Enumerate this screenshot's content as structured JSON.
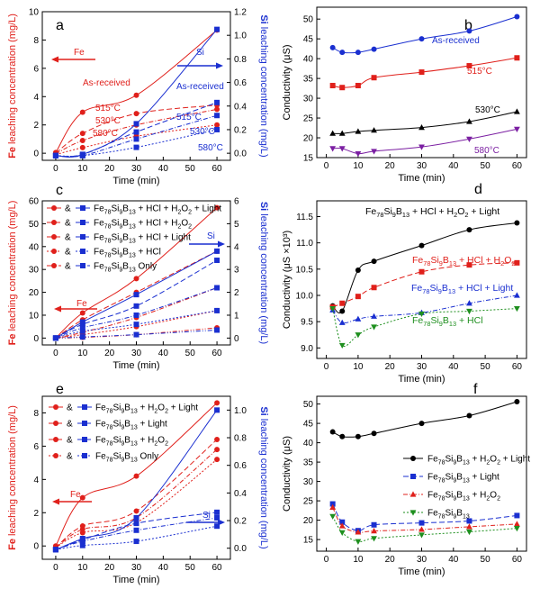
{
  "chart_data": [
    {
      "panel": "a",
      "type": "line",
      "xlabel": "Time (min)",
      "ylabel_left_bold": "Fe",
      "ylabel_left_rest": " leaching concentration (mg/L)",
      "ylabel_right_bold": "Si",
      "ylabel_right_rest": " leaching concentration (mg/L)",
      "xlim": [
        -5,
        65
      ],
      "ylim_left": [
        -0.5,
        10
      ],
      "ylim_right": [
        -0.06,
        1.2
      ],
      "xticks": [
        "0",
        "10",
        "20",
        "30",
        "40",
        "50",
        "60"
      ],
      "yticks_left": [
        "0",
        "2",
        "4",
        "6",
        "8",
        "10"
      ],
      "yticks_right": [
        "0.0",
        "0.2",
        "0.4",
        "0.6",
        "0.8",
        "1.0",
        "1.2"
      ],
      "annotations": [
        {
          "text": "Fe",
          "color": "#e0201b"
        },
        {
          "text": "Si",
          "color": "#1a2fd0"
        },
        {
          "text": "As-received",
          "color": "#e0201b"
        },
        {
          "text": "515°C",
          "color": "#e0201b"
        },
        {
          "text": "530°C",
          "color": "#e0201b"
        },
        {
          "text": "580°C",
          "color": "#e0201b"
        },
        {
          "text": "515°C",
          "color": "#1a2fd0"
        },
        {
          "text": "As-received",
          "color": "#1a2fd0"
        },
        {
          "text": "530°C",
          "color": "#1a2fd0"
        },
        {
          "text": "580°C",
          "color": "#1a2fd0"
        }
      ],
      "series": [
        {
          "name": "As-received",
          "axis": "left",
          "marker": "circle",
          "x": [
            0,
            10,
            30,
            60
          ],
          "y": [
            0.05,
            2.9,
            4.1,
            8.7
          ]
        },
        {
          "name": "515°C",
          "axis": "left",
          "marker": "circle",
          "x": [
            0,
            10,
            30,
            60
          ],
          "y": [
            0.0,
            1.4,
            2.8,
            3.4
          ]
        },
        {
          "name": "530°C",
          "axis": "left",
          "marker": "circle",
          "x": [
            0,
            10,
            30,
            60
          ],
          "y": [
            -0.05,
            0.9,
            2.0,
            3.1
          ]
        },
        {
          "name": "580°C",
          "axis": "left",
          "marker": "circle",
          "x": [
            0,
            10,
            30,
            60
          ],
          "y": [
            -0.1,
            0.4,
            1.2,
            2.0
          ]
        },
        {
          "name": "As-received",
          "axis": "right",
          "marker": "square",
          "x": [
            0,
            10,
            30,
            60
          ],
          "y": [
            -0.02,
            -0.01,
            0.25,
            1.05
          ]
        },
        {
          "name": "515°C",
          "axis": "right",
          "marker": "square",
          "x": [
            0,
            10,
            30,
            60
          ],
          "y": [
            -0.02,
            -0.01,
            0.18,
            0.43
          ]
        },
        {
          "name": "530°C",
          "axis": "right",
          "marker": "square",
          "x": [
            0,
            10,
            30,
            60
          ],
          "y": [
            -0.02,
            -0.02,
            0.12,
            0.32
          ]
        },
        {
          "name": "580°C",
          "axis": "right",
          "marker": "square",
          "x": [
            0,
            10,
            30,
            60
          ],
          "y": [
            -0.02,
            -0.02,
            0.05,
            0.2
          ]
        }
      ]
    },
    {
      "panel": "b",
      "type": "line",
      "xlabel": "Time (min)",
      "ylabel": "Conductivity (μS)",
      "xlim": [
        -3,
        63
      ],
      "ylim": [
        15,
        53
      ],
      "xticks": [
        "0",
        "10",
        "20",
        "30",
        "40",
        "50",
        "60"
      ],
      "yticks": [
        "15",
        "20",
        "25",
        "30",
        "35",
        "40",
        "45",
        "50"
      ],
      "series": [
        {
          "name": "As-received",
          "color": "#1a2fd0",
          "marker": "circle",
          "x": [
            2,
            5,
            10,
            15,
            30,
            45,
            60
          ],
          "y": [
            42.8,
            41.6,
            41.6,
            42.4,
            45.0,
            47.0,
            50.6
          ]
        },
        {
          "name": "515°C",
          "color": "#e0201b",
          "marker": "square",
          "x": [
            2,
            5,
            10,
            15,
            30,
            45,
            60
          ],
          "y": [
            33.2,
            32.7,
            33.2,
            35.2,
            36.6,
            38.2,
            40.2
          ]
        },
        {
          "name": "530°C",
          "color": "#000000",
          "marker": "triangle",
          "x": [
            2,
            5,
            10,
            15,
            30,
            45,
            60
          ],
          "y": [
            21.1,
            21.1,
            21.6,
            21.9,
            22.6,
            24.1,
            26.6
          ]
        },
        {
          "name": "580°C",
          "color": "#7b1fa2",
          "marker": "triangle-down",
          "x": [
            2,
            5,
            10,
            15,
            30,
            45,
            60
          ],
          "y": [
            17.3,
            17.3,
            16.0,
            16.6,
            17.7,
            19.7,
            22.2
          ]
        }
      ]
    },
    {
      "panel": "c",
      "type": "line",
      "xlabel": "Time (min)",
      "ylabel_left_bold": "Fe",
      "ylabel_left_rest": " leaching concentration (mg/L)",
      "ylabel_right_bold": "Si",
      "ylabel_right_rest": " leaching concentration (mg/L)",
      "xlim": [
        -5,
        65
      ],
      "ylim_left": [
        -3,
        60
      ],
      "ylim_right": [
        -0.3,
        6
      ],
      "xticks": [
        "0",
        "10",
        "20",
        "30",
        "40",
        "50",
        "60"
      ],
      "yticks_left": [
        "0",
        "10",
        "20",
        "30",
        "40",
        "50",
        "60"
      ],
      "yticks_right": [
        "0",
        "1",
        "2",
        "3",
        "4",
        "5",
        "6"
      ],
      "legend": [
        "Fe78Si9B13 + HCl + H2O2 + Light",
        "Fe78Si9B13 + HCl + H2O2",
        "Fe78Si9B13 + HCl + Light",
        "Fe78Si9B13 + HCl",
        "Fe78Si9B13 Only"
      ],
      "annotations": [
        {
          "text": "Fe",
          "color": "#e0201b"
        },
        {
          "text": "Si",
          "color": "#1a2fd0"
        }
      ],
      "series": [
        {
          "name": "Fe78Si9B13 + HCl + H2O2 + Light",
          "axis": "left",
          "x": [
            0,
            10,
            30,
            60
          ],
          "y": [
            0,
            11,
            26,
            57
          ]
        },
        {
          "name": "Fe78Si9B13 + HCl + H2O2",
          "axis": "left",
          "x": [
            0,
            10,
            30,
            60
          ],
          "y": [
            0,
            8,
            20,
            38
          ]
        },
        {
          "name": "Fe78Si9B13 + HCl + Light",
          "axis": "left",
          "x": [
            0,
            10,
            30,
            60
          ],
          "y": [
            0,
            2.5,
            9,
            22
          ]
        },
        {
          "name": "Fe78Si9B13 + HCl",
          "axis": "left",
          "x": [
            0,
            10,
            30,
            60
          ],
          "y": [
            0,
            1.5,
            5,
            12
          ]
        },
        {
          "name": "Fe78Si9B13 Only",
          "axis": "left",
          "x": [
            0,
            10,
            30,
            60
          ],
          "y": [
            0,
            0.3,
            1.5,
            4.5
          ]
        },
        {
          "name": "Fe78Si9B13 + HCl + H2O2 + Light",
          "axis": "right",
          "x": [
            0,
            10,
            30,
            60
          ],
          "y": [
            0,
            0.7,
            1.9,
            3.8
          ]
        },
        {
          "name": "Fe78Si9B13 + HCl + H2O2",
          "axis": "right",
          "x": [
            0,
            10,
            30,
            60
          ],
          "y": [
            0,
            0.6,
            1.4,
            3.4
          ]
        },
        {
          "name": "Fe78Si9B13 + HCl + Light",
          "axis": "right",
          "x": [
            0,
            10,
            30,
            60
          ],
          "y": [
            0,
            0.45,
            1.0,
            2.2
          ]
        },
        {
          "name": "Fe78Si9B13 + HCl",
          "axis": "right",
          "x": [
            0,
            10,
            30,
            60
          ],
          "y": [
            0,
            0.3,
            0.6,
            1.2
          ]
        },
        {
          "name": "Fe78Si9B13 Only",
          "axis": "right",
          "x": [
            0,
            10,
            30,
            60
          ],
          "y": [
            0,
            0.05,
            0.15,
            0.35
          ]
        }
      ]
    },
    {
      "panel": "d",
      "type": "line",
      "xlabel": "Time (min)",
      "ylabel": "Conductivity (μS ×10³)",
      "xlim": [
        -3,
        63
      ],
      "ylim": [
        8.8,
        11.8
      ],
      "xticks": [
        "0",
        "10",
        "20",
        "30",
        "40",
        "50",
        "60"
      ],
      "yticks": [
        "9.0",
        "9.5",
        "10.0",
        "10.5",
        "11.0",
        "11.5"
      ],
      "series": [
        {
          "name": "Fe78Si9B13 + HCl + H2O2 + Light",
          "color": "#000000",
          "marker": "circle",
          "x": [
            2,
            5,
            10,
            15,
            30,
            45,
            60
          ],
          "y": [
            9.8,
            9.7,
            10.48,
            10.65,
            10.95,
            11.25,
            11.38
          ]
        },
        {
          "name": "Fe78Si9B13 + HCl + H2O2",
          "color": "#e0201b",
          "marker": "square",
          "x": [
            2,
            5,
            10,
            15,
            30,
            45,
            60
          ],
          "y": [
            9.78,
            9.85,
            9.98,
            10.15,
            10.45,
            10.58,
            10.62
          ]
        },
        {
          "name": "Fe78Si9B13 + HCl + Light",
          "color": "#1a2fd0",
          "marker": "triangle",
          "x": [
            2,
            5,
            10,
            15,
            30,
            45,
            60
          ],
          "y": [
            9.72,
            9.48,
            9.55,
            9.6,
            9.67,
            9.85,
            10.0
          ]
        },
        {
          "name": "Fe78Si9B13 + HCl",
          "color": "#1e8f1e",
          "marker": "triangle-down",
          "x": [
            2,
            5,
            10,
            15,
            30,
            45,
            60
          ],
          "y": [
            9.75,
            9.05,
            9.25,
            9.4,
            9.65,
            9.7,
            9.75
          ]
        }
      ]
    },
    {
      "panel": "e",
      "type": "line",
      "xlabel": "Time (min)",
      "ylabel_left_bold": "Fe",
      "ylabel_left_rest": " leaching concentration (mg/L)",
      "ylabel_right_bold": "Si",
      "ylabel_right_rest": " leaching concentration (mg/L)",
      "xlim": [
        -5,
        65
      ],
      "ylim_left": [
        -0.8,
        9
      ],
      "ylim_right": [
        -0.08,
        1.1
      ],
      "xticks": [
        "0",
        "10",
        "20",
        "30",
        "40",
        "50",
        "60"
      ],
      "yticks_left": [
        "0",
        "2",
        "4",
        "6",
        "8"
      ],
      "yticks_right": [
        "0.0",
        "0.2",
        "0.4",
        "0.6",
        "0.8",
        "1.0"
      ],
      "legend": [
        "Fe78Si9B13 + H2O2 + Light",
        "Fe78Si9B13 + Light",
        "Fe78Si9B13 + H2O2",
        "Fe78Si9B13 Only"
      ],
      "annotations": [
        {
          "text": "Fe",
          "color": "#e0201b"
        },
        {
          "text": "Si",
          "color": "#1a2fd0"
        }
      ],
      "series": [
        {
          "name": "Fe78Si9B13 + H2O2 + Light",
          "axis": "left",
          "x": [
            0,
            10,
            30,
            60
          ],
          "y": [
            0,
            2.9,
            4.2,
            8.6
          ]
        },
        {
          "name": "Fe78Si9B13 + Light",
          "axis": "left",
          "x": [
            0,
            10,
            30,
            60
          ],
          "y": [
            -0.1,
            1.2,
            2.1,
            6.4
          ]
        },
        {
          "name": "Fe78Si9B13 + H2O2",
          "axis": "left",
          "x": [
            0,
            10,
            30,
            60
          ],
          "y": [
            -0.1,
            1.0,
            1.7,
            5.8
          ]
        },
        {
          "name": "Fe78Si9B13 Only",
          "axis": "left",
          "x": [
            0,
            10,
            30,
            60
          ],
          "y": [
            -0.1,
            0.8,
            1.4,
            5.2
          ]
        },
        {
          "name": "Fe78Si9B13 + H2O2 + Light",
          "axis": "right",
          "x": [
            0,
            10,
            30,
            60
          ],
          "y": [
            -0.01,
            0.07,
            0.22,
            1.0
          ]
        },
        {
          "name": "Fe78Si9B13 + Light",
          "axis": "right",
          "x": [
            0,
            10,
            30,
            60
          ],
          "y": [
            -0.01,
            0.06,
            0.18,
            0.26
          ]
        },
        {
          "name": "Fe78Si9B13 + H2O2",
          "axis": "right",
          "x": [
            0,
            10,
            30,
            60
          ],
          "y": [
            -0.01,
            0.05,
            0.13,
            0.22
          ]
        },
        {
          "name": "Fe78Si9B13 Only",
          "axis": "right",
          "x": [
            0,
            10,
            30,
            60
          ],
          "y": [
            -0.01,
            0.02,
            0.05,
            0.16
          ]
        }
      ]
    },
    {
      "panel": "f",
      "type": "line",
      "xlabel": "Time (min)",
      "ylabel": "Conductivity (μS)",
      "xlim": [
        -3,
        63
      ],
      "ylim": [
        12,
        52
      ],
      "xticks": [
        "0",
        "10",
        "20",
        "30",
        "40",
        "50",
        "60"
      ],
      "yticks": [
        "15",
        "20",
        "25",
        "30",
        "35",
        "40",
        "45",
        "50"
      ],
      "legend": [
        "Fe78Si9B13 + H2O2 + Light",
        "Fe78Si9B13 + Light",
        "Fe78Si9B13 + H2O2",
        "Fe78Si9B13"
      ],
      "series": [
        {
          "name": "Fe78Si9B13 + H2O2 + Light",
          "color": "#000000",
          "marker": "circle",
          "x": [
            2,
            5,
            10,
            15,
            30,
            45,
            60
          ],
          "y": [
            42.8,
            41.6,
            41.6,
            42.4,
            45.0,
            47.0,
            50.6
          ]
        },
        {
          "name": "Fe78Si9B13 + Light",
          "color": "#1a2fd0",
          "marker": "square",
          "x": [
            2,
            5,
            10,
            15,
            30,
            45,
            60
          ],
          "y": [
            24.2,
            19.5,
            17.3,
            18.8,
            19.3,
            19.8,
            21.2
          ]
        },
        {
          "name": "Fe78Si9B13 + H2O2",
          "color": "#e0201b",
          "marker": "triangle",
          "x": [
            2,
            5,
            10,
            15,
            30,
            45,
            60
          ],
          "y": [
            23.3,
            18.5,
            16.9,
            17.2,
            17.6,
            18.3,
            19.0
          ]
        },
        {
          "name": "Fe78Si9B13",
          "color": "#1e8f1e",
          "marker": "triangle-down",
          "x": [
            2,
            5,
            10,
            15,
            30,
            45,
            60
          ],
          "y": [
            21.0,
            16.8,
            14.5,
            15.3,
            16.2,
            17.0,
            17.9
          ]
        }
      ]
    }
  ],
  "colors": {
    "fe": "#e0201b",
    "si": "#1a2fd0"
  }
}
